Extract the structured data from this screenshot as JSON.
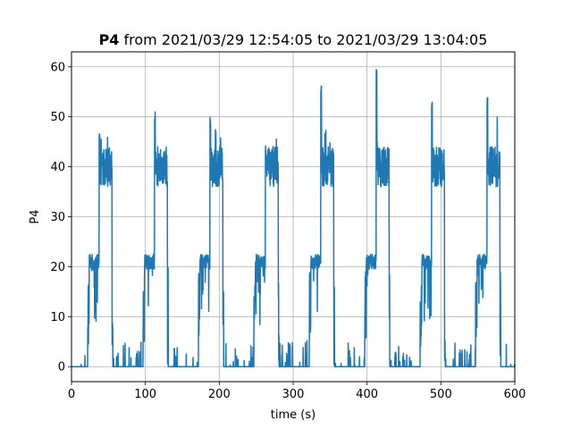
{
  "chart_data": {
    "type": "line",
    "title_bold": "P4",
    "title_rest": " from 2021/03/29 12:54:05 to 2021/03/29 13:04:05",
    "xlabel": "time (s)",
    "ylabel": "P4",
    "xlim": [
      0,
      600
    ],
    "ylim": [
      -3,
      63
    ],
    "xticks": [
      0,
      100,
      200,
      300,
      400,
      500,
      600
    ],
    "yticks": [
      0,
      10,
      20,
      30,
      40,
      50,
      60
    ],
    "grid": true,
    "color": "#1f77b4",
    "cycle_period_s": 75,
    "cycle_starts_s": [
      22,
      97,
      172,
      247,
      322,
      397,
      472,
      547
    ],
    "cycle_spikes": [
      47.5,
      51,
      50,
      45,
      56.5,
      60,
      53.5,
      55
    ],
    "series": [
      {
        "name": "",
        "x": [
          0,
          15,
          20,
          22,
          25,
          30,
          35,
          38,
          38.5,
          40,
          45,
          50,
          52,
          54,
          55,
          56,
          58,
          60,
          65,
          70,
          75,
          80,
          85,
          90,
          97,
          100,
          105,
          110,
          113,
          115,
          120,
          125,
          127,
          129,
          130,
          131,
          135,
          140,
          145,
          150,
          155,
          160,
          165,
          172,
          175,
          180,
          185,
          188,
          190,
          195,
          200,
          202,
          204,
          205,
          206,
          210,
          215,
          220,
          225,
          230,
          235,
          240,
          247,
          250,
          255,
          260,
          263,
          265,
          270,
          275,
          277,
          279,
          280,
          281,
          285,
          290,
          295,
          300,
          305,
          310,
          315,
          322,
          325,
          330,
          335,
          338,
          340,
          345,
          350,
          352,
          354,
          355,
          356,
          360,
          365,
          370,
          375,
          380,
          385,
          390,
          397,
          400,
          405,
          410,
          413,
          415,
          420,
          425,
          427,
          429,
          430,
          431,
          435,
          440,
          445,
          450,
          455,
          460,
          465,
          472,
          475,
          480,
          485,
          488,
          490,
          495,
          500,
          502,
          504,
          505,
          506,
          510,
          515,
          520,
          525,
          530,
          535,
          540,
          547,
          550,
          555,
          560,
          563,
          565,
          570,
          575,
          577,
          579,
          580,
          581,
          585,
          590,
          595,
          600
        ],
        "y": [
          0,
          0,
          1,
          4,
          21,
          22,
          19,
          22,
          47.5,
          40,
          43,
          44,
          41,
          36,
          20,
          0,
          0,
          0,
          2,
          0,
          0,
          3,
          0,
          1,
          4,
          21,
          22,
          20,
          22,
          51,
          40,
          43,
          41,
          36,
          20,
          0,
          0,
          2,
          0,
          1,
          0,
          2,
          0,
          4,
          21,
          22,
          19,
          22,
          50,
          41,
          43,
          38,
          36,
          20,
          0,
          1,
          0,
          2,
          0,
          1,
          0,
          2,
          4,
          21,
          22,
          20,
          22,
          45,
          40,
          43,
          41,
          36,
          20,
          0,
          1,
          0,
          2,
          0,
          3,
          0,
          1,
          4,
          21,
          22,
          19,
          22,
          56.5,
          41,
          42,
          38,
          36,
          20,
          0,
          2,
          0,
          3,
          0,
          1,
          0,
          2,
          4,
          21,
          22,
          19,
          22,
          60,
          42,
          43,
          38,
          36,
          20,
          0,
          1,
          0,
          2,
          0,
          3,
          0,
          1,
          4,
          21,
          22,
          19,
          22,
          53.5,
          42,
          44,
          38,
          36,
          20,
          0,
          2,
          0,
          3,
          0,
          1,
          0,
          2,
          4,
          21,
          22,
          19,
          22,
          55,
          42,
          43,
          39,
          36,
          20,
          0,
          1,
          0,
          3,
          0
        ]
      }
    ]
  }
}
